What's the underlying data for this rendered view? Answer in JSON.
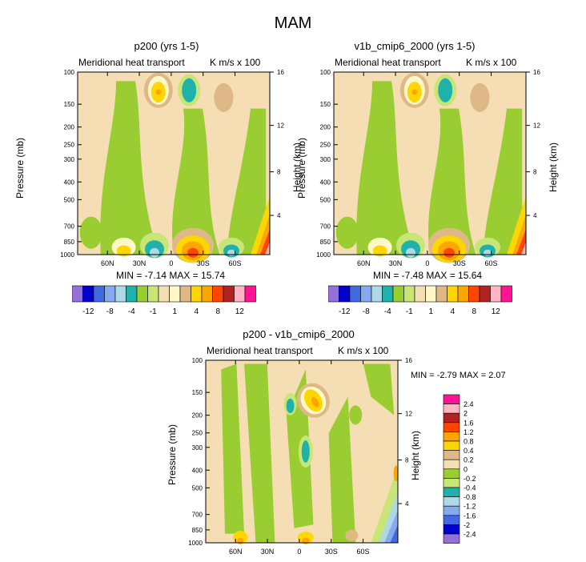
{
  "figure_title": "MAM",
  "chart_data": [
    {
      "type": "heatmap",
      "id": "p200",
      "title": "p200 (yrs 1-5)",
      "subtitle_left": "Meridional heat transport",
      "subtitle_right": "K m/s x 100",
      "ylabel": "Pressure (mb)",
      "ylabel_right": "Height (km)",
      "x_ticks": [
        "60N",
        "30N",
        "0",
        "30S",
        "60S"
      ],
      "y_ticks": [
        "100",
        "150",
        "200",
        "250",
        "300",
        "400",
        "500",
        "700",
        "850",
        "1000"
      ],
      "y_ticks_right": [
        "16",
        "12",
        "8",
        "4"
      ],
      "min_label": "MIN =  -7.14  MAX =  15.74",
      "min": -7.14,
      "max": 15.74,
      "colorbar_labels": [
        "-12",
        "-8",
        "-4",
        "-1",
        "1",
        "4",
        "8",
        "12"
      ]
    },
    {
      "type": "heatmap",
      "id": "v1b",
      "title": "v1b_cmip6_2000 (yrs 1-5)",
      "subtitle_left": "Meridional heat transport",
      "subtitle_right": "K m/s x 100",
      "ylabel": "Pressure (mb)",
      "ylabel_right": "Height (km)",
      "x_ticks": [
        "60N",
        "30N",
        "0",
        "30S",
        "60S"
      ],
      "y_ticks": [
        "100",
        "150",
        "200",
        "250",
        "300",
        "400",
        "500",
        "700",
        "850",
        "1000"
      ],
      "y_ticks_right": [
        "16",
        "12",
        "8",
        "4"
      ],
      "min_label": "MIN =  -7.48  MAX =  15.64",
      "min": -7.48,
      "max": 15.64,
      "colorbar_labels": [
        "-12",
        "-8",
        "-4",
        "-1",
        "1",
        "4",
        "8",
        "12"
      ]
    },
    {
      "type": "heatmap",
      "id": "diff",
      "title": "p200 - v1b_cmip6_2000",
      "subtitle_left": "Meridional heat transport",
      "subtitle_right": "K m/s x 100",
      "ylabel": "Pressure (mb)",
      "ylabel_right": "Height (km)",
      "x_ticks": [
        "60N",
        "30N",
        "0",
        "30S",
        "60S"
      ],
      "y_ticks": [
        "100",
        "150",
        "200",
        "250",
        "300",
        "400",
        "500",
        "700",
        "850",
        "1000"
      ],
      "y_ticks_right": [
        "16",
        "12",
        "8",
        "4"
      ],
      "min_label": "MIN =  -2.79  MAX =  2.07",
      "min": -2.79,
      "max": 2.07,
      "colorbar_labels": [
        "2.4",
        "2",
        "1.6",
        "1.2",
        "0.8",
        "0.4",
        "0.2",
        "0",
        "-0.2",
        "-0.4",
        "-0.8",
        "-1.2",
        "-1.6",
        "-2",
        "-2.4"
      ]
    }
  ],
  "colors": {
    "main_palette": [
      "#9370db",
      "#0000cd",
      "#4169e1",
      "#87a9f0",
      "#add8e6",
      "#20b2aa",
      "#9acd32",
      "#c8e678",
      "#f5deb3",
      "#fff8c8",
      "#deb887",
      "#ffd700",
      "#ffa500",
      "#ff4500",
      "#b22222",
      "#ffb6c1",
      "#ff1493"
    ],
    "diff_palette": [
      "#ff1493",
      "#ffb6c1",
      "#b22222",
      "#ff4500",
      "#ffa500",
      "#ffd700",
      "#deb887",
      "#f5deb3",
      "#9acd32",
      "#c8e678",
      "#20b2aa",
      "#add8e6",
      "#87a9f0",
      "#4169e1",
      "#0000cd",
      "#9370db"
    ]
  }
}
